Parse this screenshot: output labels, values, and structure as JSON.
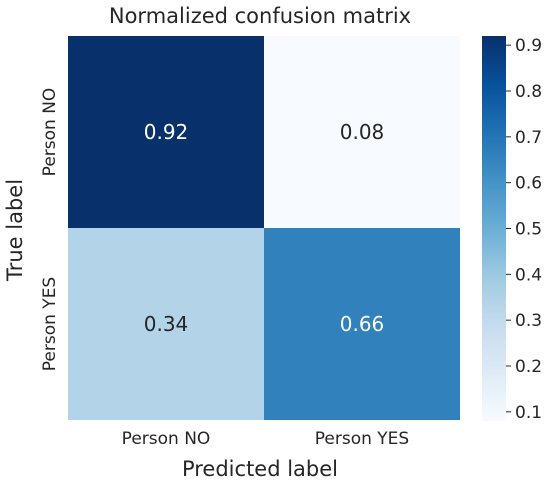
{
  "chart_data": {
    "type": "heatmap",
    "title": "Normalized confusion matrix",
    "xlabel": "Predicted label",
    "ylabel": "True label",
    "x_categories": [
      "Person NO",
      "Person YES"
    ],
    "y_categories": [
      "Person NO",
      "Person YES"
    ],
    "values": [
      [
        0.92,
        0.08
      ],
      [
        0.34,
        0.66
      ]
    ],
    "cell_labels": [
      [
        "0.92",
        "0.08"
      ],
      [
        "0.34",
        "0.66"
      ]
    ],
    "colormap": "Blues",
    "colorbar": {
      "range": [
        0.08,
        0.92
      ],
      "ticks": [
        0.1,
        0.2,
        0.3,
        0.4,
        0.5,
        0.6,
        0.7,
        0.8,
        0.9
      ],
      "tick_labels": [
        "0.1",
        "0.2",
        "0.3",
        "0.4",
        "0.5",
        "0.6",
        "0.7",
        "0.8",
        "0.9"
      ]
    },
    "grid": false
  }
}
